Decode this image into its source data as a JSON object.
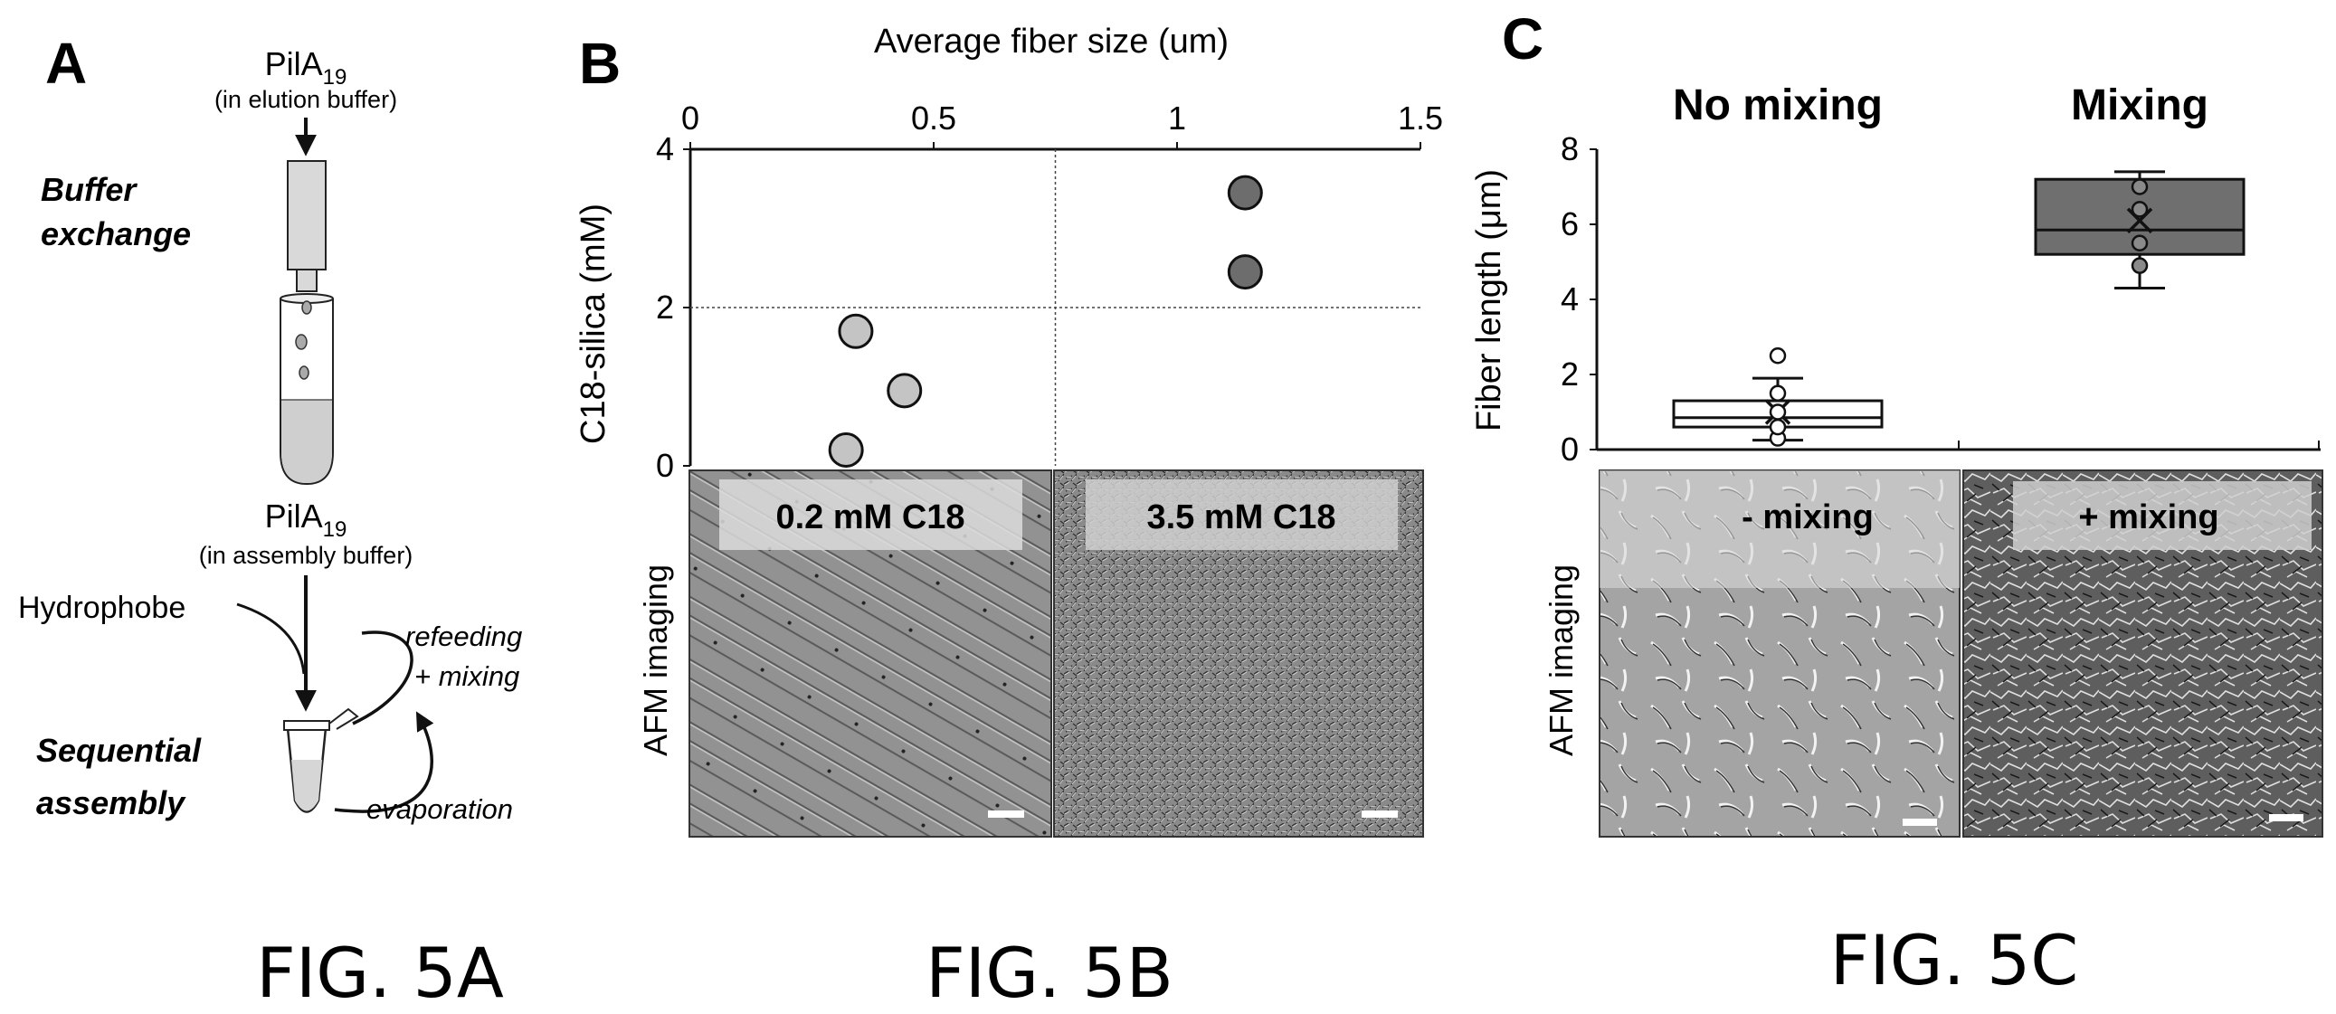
{
  "panel_a": {
    "letter": "A",
    "protein_top": "PilA",
    "protein_top_sub": "19",
    "elution_buffer": "(in elution buffer)",
    "buffer_exchange_1": "Buffer",
    "buffer_exchange_2": "exchange",
    "protein_mid": "PilA",
    "protein_mid_sub": "19",
    "assembly_buffer": "(in assembly buffer)",
    "hydrophobe": "Hydrophobe",
    "refeeding": "refeeding",
    "mixing": "+ mixing",
    "sequential_1": "Sequential",
    "sequential_2": "assembly",
    "evaporation": "evaporation",
    "fig_label": "FIG. 5A"
  },
  "panel_b": {
    "letter": "B",
    "afm_label": "AFM imaging",
    "afm_left_label": "0.2 mM C18",
    "afm_right_label": "3.5 mM C18",
    "fig_label": "FIG. 5B"
  },
  "panel_c": {
    "letter": "C",
    "afm_label": "AFM imaging",
    "afm_left_label": "- mixing",
    "afm_right_label": "+ mixing",
    "fig_label": "FIG. 5C"
  },
  "chart_data": [
    {
      "type": "scatter",
      "title": "",
      "xlabel": "Average fiber size (um)",
      "ylabel": "C18-silica (mM)",
      "xlim": [
        0,
        1.5
      ],
      "ylim": [
        0,
        4
      ],
      "x_ticks": [
        "0",
        "0.5",
        "1",
        "1.5"
      ],
      "y_ticks": [
        "0",
        "2",
        "4"
      ],
      "x_axis_position": "top",
      "reference_lines": {
        "x": 0.75,
        "y": 2
      },
      "series": [
        {
          "color": "#c4c4c4",
          "points": [
            {
              "x": 0.32,
              "y": 0.2
            },
            {
              "x": 0.44,
              "y": 0.95
            },
            {
              "x": 0.34,
              "y": 1.7
            }
          ]
        },
        {
          "color": "#6d6d6d",
          "points": [
            {
              "x": 1.14,
              "y": 2.45
            },
            {
              "x": 1.14,
              "y": 3.45
            }
          ]
        }
      ]
    },
    {
      "type": "box",
      "title": "",
      "ylabel": "Fiber length (μm)",
      "ylim": [
        0,
        8
      ],
      "y_ticks": [
        "0",
        "2",
        "4",
        "6",
        "8"
      ],
      "categories": [
        "No mixing",
        "Mixing"
      ],
      "boxes": [
        {
          "name": "No mixing",
          "color": "#ffffff",
          "whisker_low": 0.25,
          "q1": 0.6,
          "median": 0.85,
          "q3": 1.3,
          "whisker_high": 1.9,
          "mean": 1.0,
          "outlier_points": [
            0.3,
            0.6,
            1.0,
            1.5,
            2.5
          ]
        },
        {
          "name": "Mixing",
          "color": "#6f6f6f",
          "whisker_low": 4.3,
          "q1": 5.2,
          "median": 5.85,
          "q3": 7.2,
          "whisker_high": 7.4,
          "mean": 6.1,
          "outlier_points": [
            4.9,
            5.5,
            6.4,
            7.0
          ]
        }
      ]
    }
  ]
}
